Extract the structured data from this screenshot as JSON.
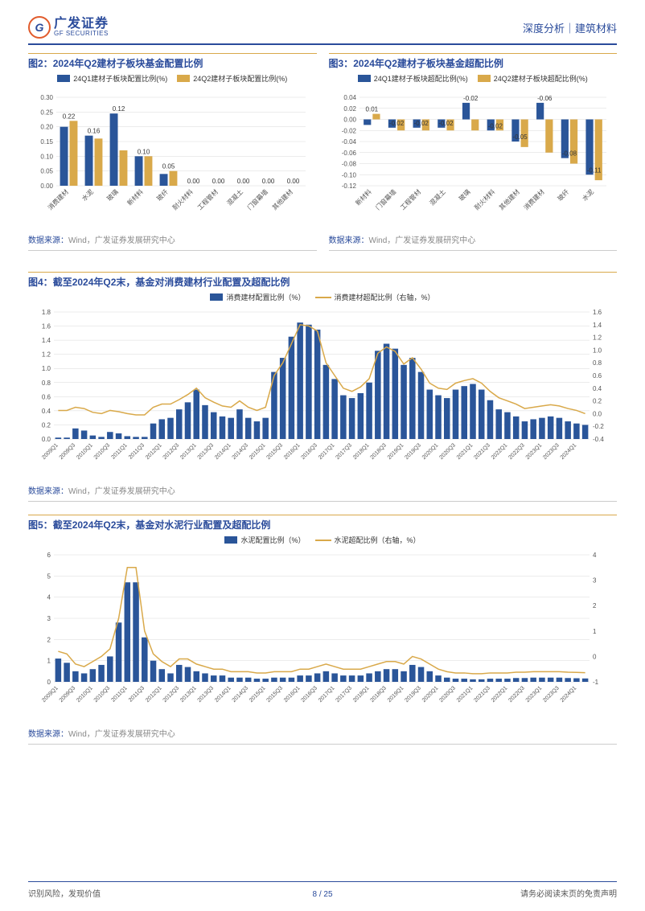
{
  "header": {
    "logo_cn": "广发证券",
    "logo_en": "GF SECURITIES",
    "logo_g": "G",
    "right": "深度分析｜建筑材料"
  },
  "chart2": {
    "title_prefix": "图2：",
    "title": "2024年Q2建材子板块基金配置比例",
    "legend_s1": "24Q1建材子板块配置比例(%)",
    "legend_s2": "24Q2建材子板块配置比例(%)",
    "colors": {
      "s1": "#2a5599",
      "s2": "#d9a94a",
      "grid": "#d8d8d8",
      "axis": "#888"
    },
    "ylim": [
      0,
      0.3
    ],
    "ytick_step": 0.05,
    "categories": [
      "消费建材",
      "水泥",
      "玻璃",
      "新材料",
      "玻纤",
      "耐火材料",
      "工程管材",
      "混凝土",
      "门窗幕墙",
      "其他建材"
    ],
    "s1": [
      0.2,
      0.17,
      0.245,
      0.1,
      0.04,
      0.0,
      0.0,
      0.0,
      0.0,
      0.0
    ],
    "s2": [
      0.22,
      0.16,
      0.12,
      0.1,
      0.05,
      0.0,
      0.0,
      0.0,
      0.0,
      0.0
    ],
    "value_labels": [
      "0.22",
      "0.16",
      "0.12",
      "0.10",
      "0.05",
      "0.00",
      "0.00",
      "0.00",
      "0.00",
      "0.00"
    ]
  },
  "chart3": {
    "title_prefix": "图3：",
    "title": "2024年Q2建材子板块基金超配比例",
    "legend_s1": "24Q1建材子板块超配比例(%)",
    "legend_s2": "24Q2建材子板块超配比例(%)",
    "colors": {
      "s1": "#2a5599",
      "s2": "#d9a94a",
      "grid": "#d8d8d8",
      "axis": "#888"
    },
    "ylim": [
      -0.12,
      0.04
    ],
    "ytick_step": 0.02,
    "categories": [
      "新材料",
      "门窗幕墙",
      "工程管材",
      "混凝土",
      "玻璃",
      "耐火材料",
      "其他建材",
      "消费建材",
      "玻纤",
      "水泥"
    ],
    "s1": [
      -0.01,
      -0.015,
      -0.015,
      -0.015,
      0.03,
      -0.02,
      -0.04,
      0.03,
      -0.07,
      -0.1
    ],
    "s2": [
      0.01,
      -0.02,
      -0.02,
      -0.02,
      -0.02,
      -0.02,
      -0.05,
      -0.06,
      -0.08,
      -0.11
    ],
    "value_labels": [
      "0.01",
      "-0.02",
      "-0.02",
      "-0.02",
      "-0.02",
      "-0.02",
      "-0.05",
      "-0.06",
      "-0.08",
      "-0.11"
    ]
  },
  "chart4": {
    "title_prefix": "图4：",
    "title": "截至2024年Q2末，基金对消费建材行业配置及超配比例",
    "legend_bar": "消费建材配置比例（%）",
    "legend_line": "消费建材超配比例（右轴，%）",
    "colors": {
      "bar": "#2a5599",
      "line": "#d9a94a",
      "grid": "#d8d8d8"
    },
    "ylim_left": [
      0,
      1.8
    ],
    "ytick_left": 0.2,
    "ylim_right": [
      -0.4,
      1.6
    ],
    "ytick_right": 0.2,
    "categories": [
      "2009Q1",
      "2009Q3",
      "2010Q1",
      "2010Q3",
      "2011Q1",
      "2011Q3",
      "2012Q1",
      "2012Q3",
      "2013Q1",
      "2013Q3",
      "2014Q1",
      "2014Q3",
      "2015Q1",
      "2015Q3",
      "2016Q1",
      "2016Q3",
      "2017Q1",
      "2017Q3",
      "2018Q1",
      "2018Q3",
      "2019Q1",
      "2019Q3",
      "2020Q1",
      "2020Q3",
      "2021Q1",
      "2021Q3",
      "2022Q1",
      "2022Q3",
      "2023Q1",
      "2023Q3",
      "2024Q1"
    ],
    "bars": [
      0.02,
      0.02,
      0.15,
      0.12,
      0.05,
      0.03,
      0.1,
      0.08,
      0.04,
      0.03,
      0.03,
      0.22,
      0.28,
      0.3,
      0.42,
      0.52,
      0.7,
      0.48,
      0.38,
      0.32,
      0.3,
      0.42,
      0.3,
      0.25,
      0.3,
      0.95,
      1.15,
      1.45,
      1.65,
      1.62,
      1.55,
      1.05,
      0.85,
      0.62,
      0.58,
      0.65,
      0.8,
      1.25,
      1.35,
      1.28,
      1.05,
      1.15,
      0.95,
      0.7,
      0.62,
      0.58,
      0.7,
      0.75,
      0.78,
      0.7,
      0.55,
      0.42,
      0.38,
      0.32,
      0.25,
      0.28,
      0.3,
      0.32,
      0.3,
      0.25,
      0.22,
      0.2
    ],
    "line": [
      0.05,
      0.05,
      0.1,
      0.08,
      0.02,
      0.0,
      0.05,
      0.03,
      0.0,
      -0.02,
      -0.02,
      0.1,
      0.15,
      0.15,
      0.22,
      0.3,
      0.4,
      0.25,
      0.18,
      0.12,
      0.1,
      0.2,
      0.1,
      0.05,
      0.1,
      0.6,
      0.8,
      1.1,
      1.4,
      1.38,
      1.3,
      0.8,
      0.6,
      0.4,
      0.35,
      0.42,
      0.55,
      0.95,
      1.05,
      0.98,
      0.78,
      0.88,
      0.7,
      0.48,
      0.4,
      0.38,
      0.48,
      0.52,
      0.55,
      0.48,
      0.35,
      0.25,
      0.2,
      0.15,
      0.08,
      0.1,
      0.12,
      0.14,
      0.12,
      0.08,
      0.05,
      0.0
    ]
  },
  "chart5": {
    "title_prefix": "图5：",
    "title": "截至2024年Q2末，基金对水泥行业配置及超配比例",
    "legend_bar": "水泥配置比例（%）",
    "legend_line": "水泥超配比例（右轴，%）",
    "colors": {
      "bar": "#2a5599",
      "line": "#d9a94a",
      "grid": "#d8d8d8"
    },
    "ylim_left": [
      0,
      6
    ],
    "ytick_left": 1,
    "ylim_right": [
      -1,
      4
    ],
    "ytick_right": 1,
    "categories": [
      "2009Q1",
      "2009Q3",
      "2010Q1",
      "2010Q3",
      "2011Q1",
      "2011Q3",
      "2012Q1",
      "2012Q3",
      "2013Q1",
      "2013Q3",
      "2014Q1",
      "2014Q3",
      "2015Q1",
      "2015Q3",
      "2016Q1",
      "2016Q3",
      "2017Q1",
      "2017Q3",
      "2018Q1",
      "2018Q3",
      "2019Q1",
      "2019Q3",
      "2020Q1",
      "2020Q3",
      "2021Q1",
      "2021Q3",
      "2022Q1",
      "2022Q3",
      "2023Q1",
      "2023Q3",
      "2024Q1"
    ],
    "bars": [
      1.1,
      0.9,
      0.5,
      0.4,
      0.6,
      0.8,
      1.2,
      2.8,
      4.7,
      4.7,
      2.1,
      1.0,
      0.6,
      0.4,
      0.8,
      0.7,
      0.5,
      0.4,
      0.3,
      0.3,
      0.2,
      0.2,
      0.2,
      0.15,
      0.15,
      0.2,
      0.2,
      0.2,
      0.3,
      0.3,
      0.4,
      0.5,
      0.4,
      0.3,
      0.3,
      0.3,
      0.4,
      0.5,
      0.6,
      0.6,
      0.5,
      0.8,
      0.7,
      0.5,
      0.3,
      0.2,
      0.15,
      0.15,
      0.12,
      0.12,
      0.15,
      0.15,
      0.15,
      0.18,
      0.18,
      0.2,
      0.2,
      0.2,
      0.2,
      0.18,
      0.17,
      0.16
    ],
    "line": [
      0.2,
      0.1,
      -0.3,
      -0.4,
      -0.2,
      0.0,
      0.3,
      1.5,
      3.5,
      3.5,
      1.0,
      0.1,
      -0.2,
      -0.4,
      -0.1,
      -0.1,
      -0.3,
      -0.4,
      -0.5,
      -0.5,
      -0.6,
      -0.6,
      -0.6,
      -0.65,
      -0.65,
      -0.6,
      -0.6,
      -0.6,
      -0.5,
      -0.5,
      -0.4,
      -0.3,
      -0.4,
      -0.5,
      -0.5,
      -0.5,
      -0.4,
      -0.3,
      -0.2,
      -0.2,
      -0.3,
      0.0,
      -0.1,
      -0.3,
      -0.5,
      -0.6,
      -0.65,
      -0.65,
      -0.68,
      -0.68,
      -0.65,
      -0.65,
      -0.65,
      -0.62,
      -0.62,
      -0.6,
      -0.6,
      -0.6,
      -0.6,
      -0.62,
      -0.63,
      -0.64
    ]
  },
  "source": {
    "label": "数据来源：",
    "text": "Wind，广发证券发展研究中心"
  },
  "footer": {
    "left": "识别风险，发现价值",
    "right": "请务必阅读末页的免责声明",
    "page": "8 / 25"
  }
}
